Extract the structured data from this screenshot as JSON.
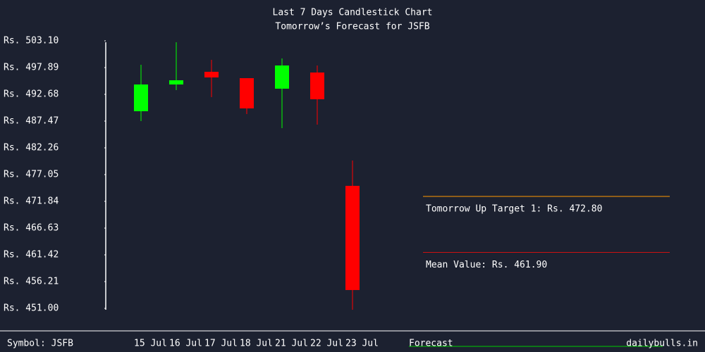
{
  "chart_data": {
    "type": "candlestick",
    "title": "Last 7 Days Candlestick Chart",
    "subtitle": "Tomorrow’s Forecast for JSFB",
    "categories": [
      "15 Jul",
      "16 Jul",
      "17 Jul",
      "18 Jul",
      "21 Jul",
      "22 Jul",
      "23 Jul"
    ],
    "open": [
      489.39,
      494.6,
      497.07,
      495.83,
      493.78,
      496.93,
      474.86
    ],
    "high": [
      498.44,
      502.83,
      499.4,
      495.83,
      499.67,
      498.3,
      479.79
    ],
    "low": [
      487.47,
      493.5,
      492.13,
      488.84,
      486.1,
      486.79,
      450.73
    ],
    "close": [
      494.6,
      495.42,
      495.97,
      489.94,
      498.3,
      491.72,
      454.57
    ],
    "up_color": "#00ff00",
    "down_color": "#ff0000",
    "ylim": [
      451.0,
      503.1
    ],
    "yticks": [
      {
        "value": 503.1,
        "label": "Rs. 503.10"
      },
      {
        "value": 497.89,
        "label": "Rs. 497.89"
      },
      {
        "value": 492.68,
        "label": "Rs. 492.68"
      },
      {
        "value": 487.47,
        "label": "Rs. 487.47"
      },
      {
        "value": 482.26,
        "label": "Rs. 482.26"
      },
      {
        "value": 477.05,
        "label": "Rs. 477.05"
      },
      {
        "value": 471.84,
        "label": "Rs. 471.84"
      },
      {
        "value": 466.63,
        "label": "Rs. 466.63"
      },
      {
        "value": 461.42,
        "label": "Rs. 461.42"
      },
      {
        "value": 456.21,
        "label": "Rs. 456.21"
      },
      {
        "value": 451.0,
        "label": "Rs. 451.00"
      }
    ],
    "levels": [
      {
        "value": 472.8,
        "label": "Tomorrow Up Target 1: Rs. 472.80",
        "color": "#ff9900"
      },
      {
        "value": 461.9,
        "label": "Mean Value: Rs. 461.90",
        "color": "#cc1111"
      }
    ],
    "symbol_label": "Symbol: JSFB",
    "forecast_label": "Forecast",
    "source": "dailybulls.in"
  }
}
